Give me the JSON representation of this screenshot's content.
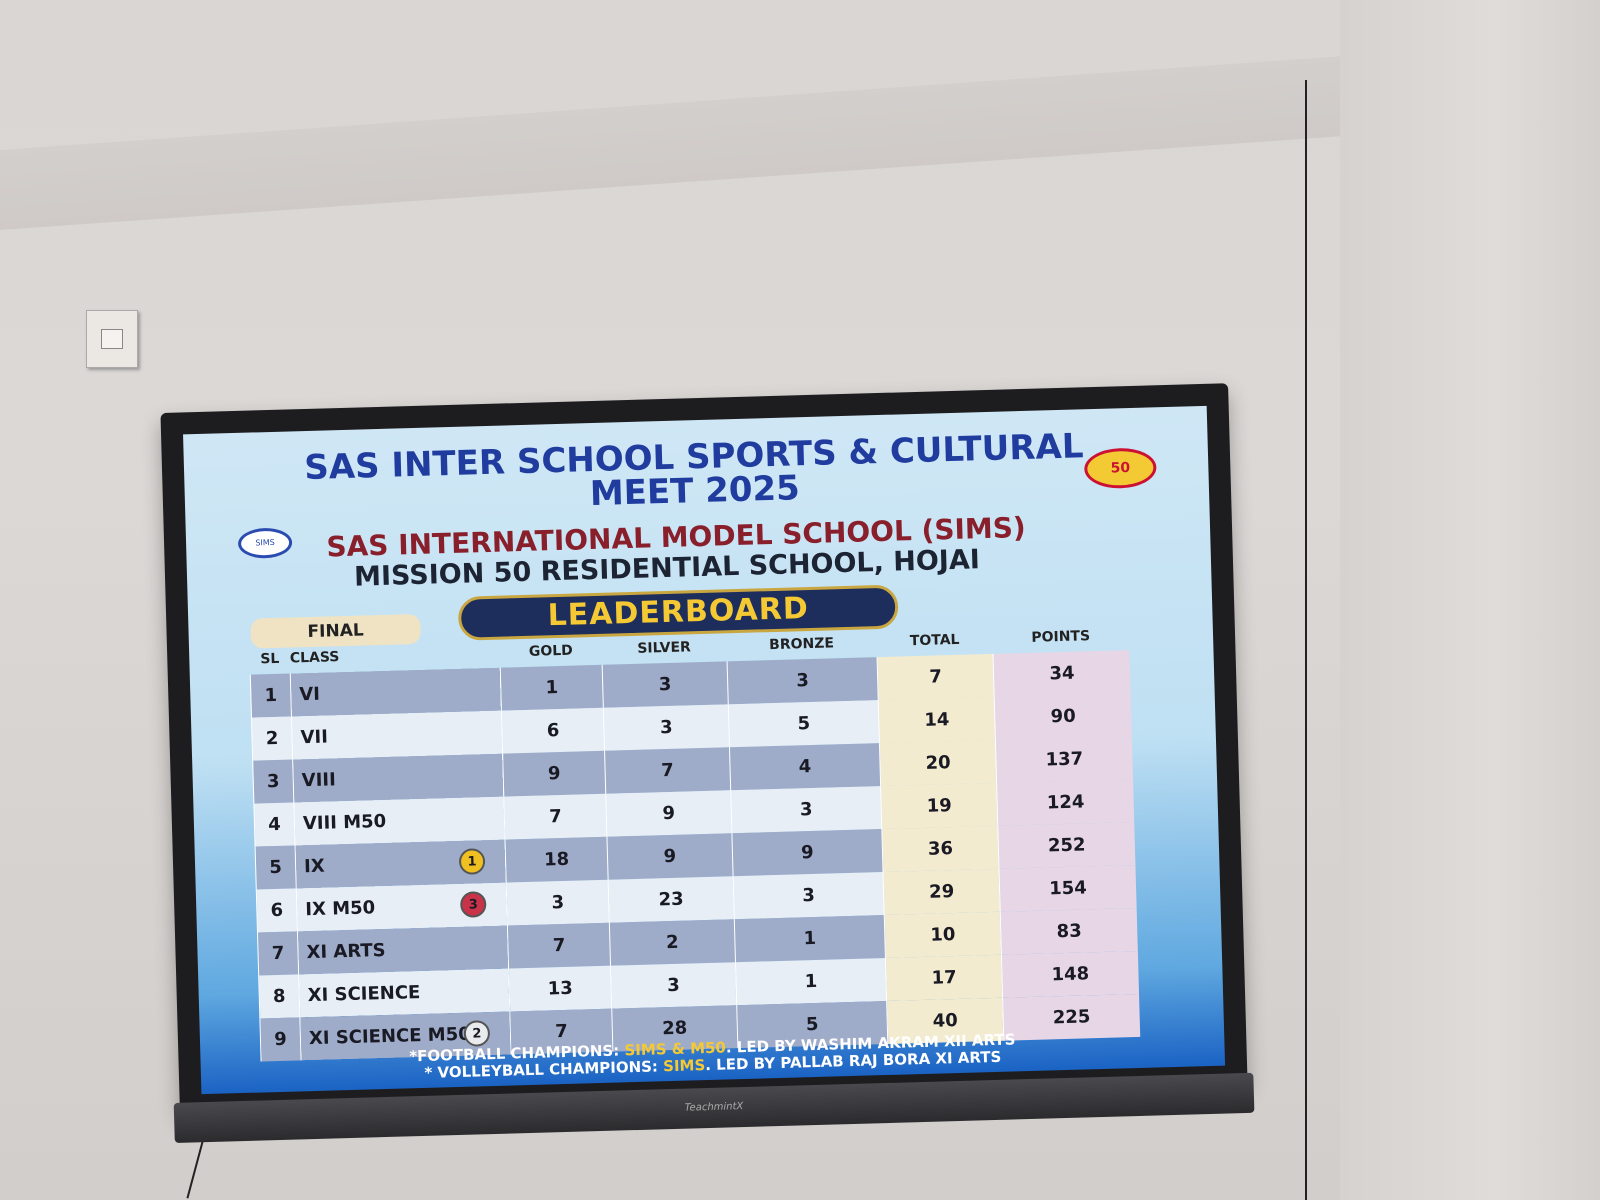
{
  "display": {
    "title_line1": "SAS INTER SCHOOL SPORTS & CULTURAL",
    "title_line2": "MEET 2025",
    "school_line1": "SAS INTERNATIONAL MODEL SCHOOL (SIMS)",
    "school_line2": "MISSION 50 RESIDENTIAL SCHOOL, HOJAI",
    "banner": "LEADERBOARD",
    "stage": "FINAL",
    "logo_left": "SIMS",
    "logo_right": "50",
    "brand": "TeachmintX"
  },
  "table": {
    "headers": [
      "SL",
      "CLASS",
      "GOLD",
      "SILVER",
      "BRONZE",
      "TOTAL",
      "POINTS"
    ],
    "rows": [
      {
        "sl": "1",
        "class": "VI",
        "gold": "1",
        "silver": "3",
        "bronze": "3",
        "total": "7",
        "points": "34"
      },
      {
        "sl": "2",
        "class": "VII",
        "gold": "6",
        "silver": "3",
        "bronze": "5",
        "total": "14",
        "points": "90"
      },
      {
        "sl": "3",
        "class": "VIII",
        "gold": "9",
        "silver": "7",
        "bronze": "4",
        "total": "20",
        "points": "137"
      },
      {
        "sl": "4",
        "class": "VIII M50",
        "gold": "7",
        "silver": "9",
        "bronze": "3",
        "total": "19",
        "points": "124"
      },
      {
        "sl": "5",
        "class": "IX",
        "gold": "18",
        "silver": "9",
        "bronze": "9",
        "total": "36",
        "points": "252",
        "rank": "1"
      },
      {
        "sl": "6",
        "class": "IX M50",
        "gold": "3",
        "silver": "23",
        "bronze": "3",
        "total": "29",
        "points": "154",
        "rank": "3"
      },
      {
        "sl": "7",
        "class": "XI ARTS",
        "gold": "7",
        "silver": "2",
        "bronze": "1",
        "total": "10",
        "points": "83"
      },
      {
        "sl": "8",
        "class": "XI SCIENCE",
        "gold": "13",
        "silver": "3",
        "bronze": "1",
        "total": "17",
        "points": "148"
      },
      {
        "sl": "9",
        "class": "XI SCIENCE M50",
        "gold": "7",
        "silver": "28",
        "bronze": "5",
        "total": "40",
        "points": "225",
        "rank": "2"
      }
    ]
  },
  "footer": {
    "line1_prefix": "*FOOTBALL CHAMPIONS: ",
    "line1_highlight": "SIMS & M50",
    "line1_suffix": ". LED BY WASHIM AKRAM XII ARTS",
    "line2_prefix": "* VOLLEYBALL CHAMPIONS: ",
    "line2_highlight": "SIMS",
    "line2_suffix": ". LED BY PALLAB RAJ BORA XI ARTS"
  },
  "colors": {
    "gold": "#f0c020",
    "silver": "#c0c4c8",
    "bronze": "#c8334a",
    "title_blue": "#1f3c9e",
    "school_red": "#8a1f2c"
  }
}
